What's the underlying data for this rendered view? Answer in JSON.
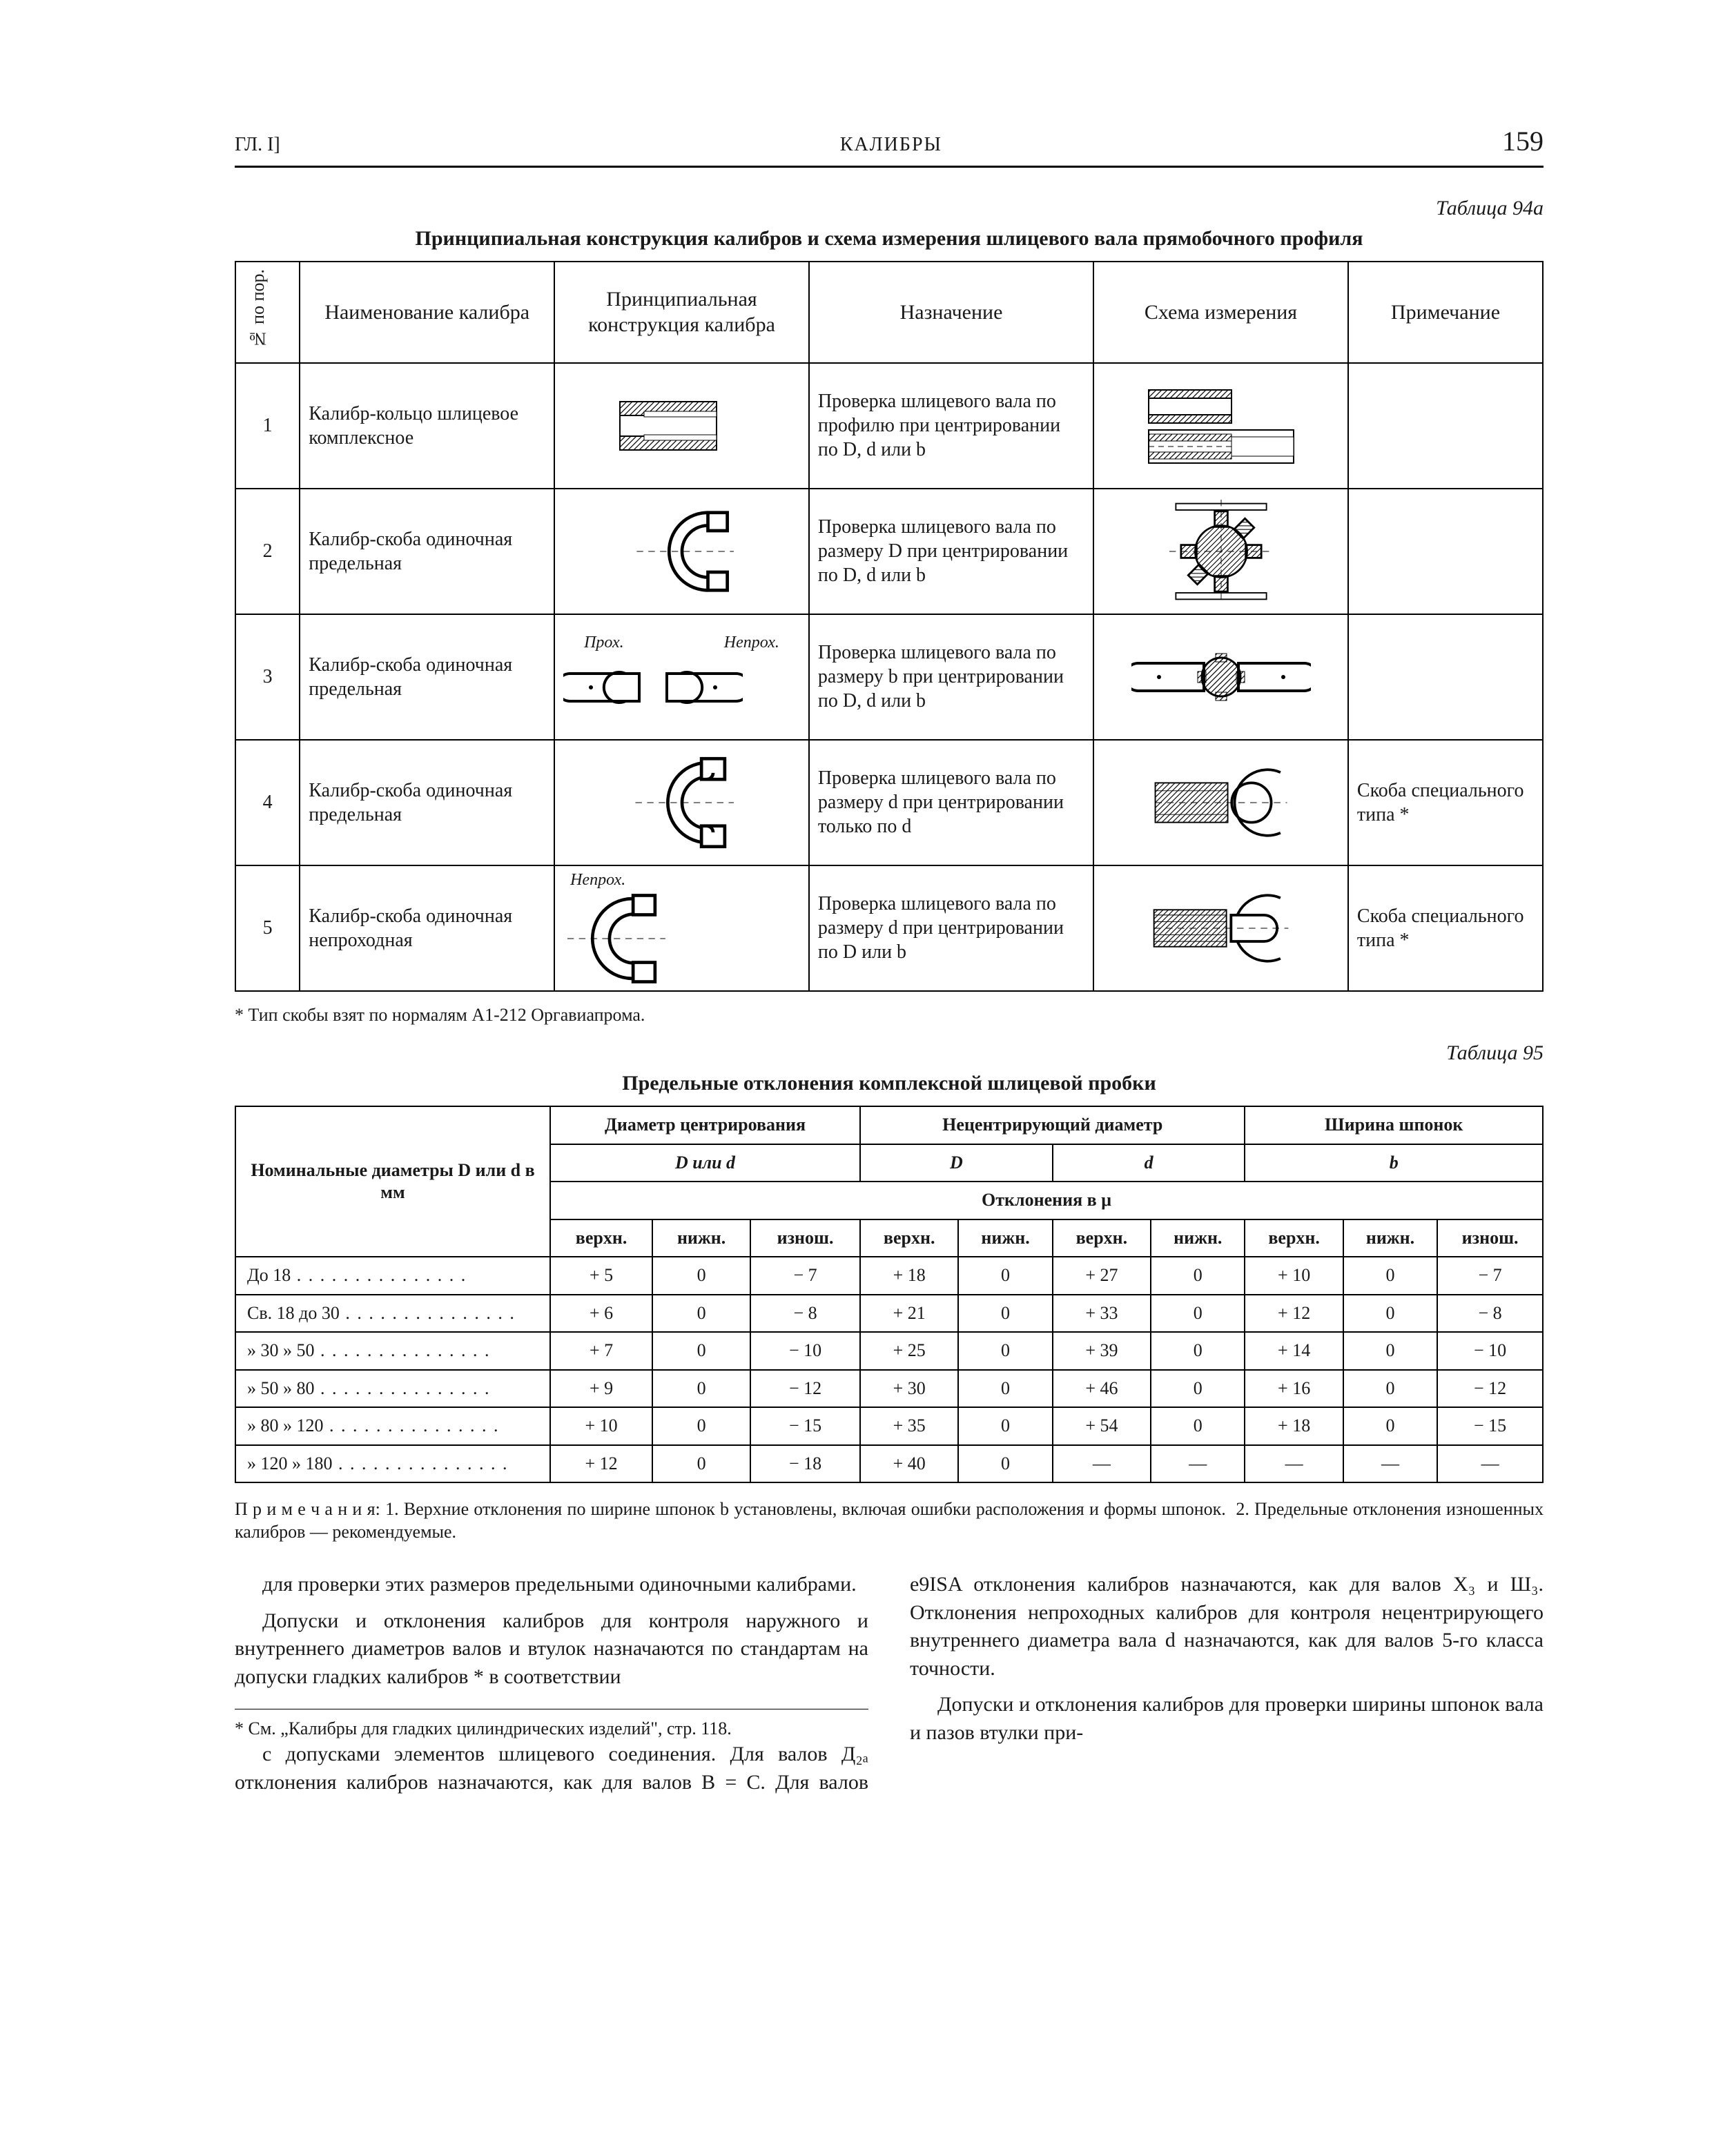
{
  "header": {
    "left": "ГЛ. I]",
    "center": "КАЛИБРЫ",
    "page_no": "159"
  },
  "table94a": {
    "label": "Таблица 94а",
    "title": "Принципиальная конструкция калибров и схема измерения шлицевого вала прямобочного профиля",
    "head": {
      "num": "№ по пор.",
      "name": "Наименование калибра",
      "cons": "Принципиальная конструкция калибра",
      "purp": "Назначение",
      "sch": "Схема измерения",
      "note": "Примечание"
    },
    "diag_labels": {
      "proh": "Прох.",
      "neproh": "Непрох."
    },
    "rows": [
      {
        "n": "1",
        "name": "Калибр-кольцо шлицевое комплексное",
        "purpose": "Проверка шлицевого вала по профилю при центрировании по D, d или b",
        "note": ""
      },
      {
        "n": "2",
        "name": "Калибр-скоба одиночная предельная",
        "purpose": "Проверка шлицевого вала по размеру D при центрировании по D, d или b",
        "note": ""
      },
      {
        "n": "3",
        "name": "Калибр-скоба одиночная предельная",
        "purpose": "Проверка шлицевого вала по размеру b при центрировании по D, d или b",
        "note": ""
      },
      {
        "n": "4",
        "name": "Калибр-скоба одиночная предельная",
        "purpose": "Проверка шлицевого вала по размеру d при центрировании только по d",
        "note": "Скоба специального типа *"
      },
      {
        "n": "5",
        "name": "Калибр-скоба одиночная непроходная",
        "purpose": "Проверка шлицевого вала по размеру d при центрировании по D или b",
        "note": "Скоба специального типа *"
      }
    ],
    "footnote": "* Тип скобы взят по нормалям А1-212 Оргавиапрома."
  },
  "table95": {
    "label": "Таблица 95",
    "title": "Предельные отклонения комплексной шлицевой пробки",
    "head": {
      "nom": "Номинальные диаметры D или d в мм",
      "center_diam": "Диаметр центрирования",
      "noncenter_diam": "Нецентрирующий диаметр",
      "key_width": "Ширина шпонок",
      "D_or_d": "D или d",
      "D": "D",
      "d": "d",
      "b": "b",
      "dev": "Отклонения в μ",
      "upper": "верхн.",
      "lower": "нижн.",
      "worn": "изнош."
    },
    "rows": [
      {
        "label": "До 18",
        "c_u": "+ 5",
        "c_l": "0",
        "c_w": "− 7",
        "D_u": "+ 18",
        "D_l": "0",
        "d_u": "+ 27",
        "d_l": "0",
        "b_u": "+ 10",
        "b_l": "0",
        "b_w": "− 7"
      },
      {
        "label": "Св. 18 до 30",
        "c_u": "+ 6",
        "c_l": "0",
        "c_w": "− 8",
        "D_u": "+ 21",
        "D_l": "0",
        "d_u": "+ 33",
        "d_l": "0",
        "b_u": "+ 12",
        "b_l": "0",
        "b_w": "− 8"
      },
      {
        "label": "» 30 » 50",
        "c_u": "+ 7",
        "c_l": "0",
        "c_w": "− 10",
        "D_u": "+ 25",
        "D_l": "0",
        "d_u": "+ 39",
        "d_l": "0",
        "b_u": "+ 14",
        "b_l": "0",
        "b_w": "− 10"
      },
      {
        "label": "» 50 » 80",
        "c_u": "+ 9",
        "c_l": "0",
        "c_w": "− 12",
        "D_u": "+ 30",
        "D_l": "0",
        "d_u": "+ 46",
        "d_l": "0",
        "b_u": "+ 16",
        "b_l": "0",
        "b_w": "− 12"
      },
      {
        "label": "» 80 » 120",
        "c_u": "+ 10",
        "c_l": "0",
        "c_w": "− 15",
        "D_u": "+ 35",
        "D_l": "0",
        "d_u": "+ 54",
        "d_l": "0",
        "b_u": "+ 18",
        "b_l": "0",
        "b_w": "− 15"
      },
      {
        "label": "» 120 » 180",
        "c_u": "+ 12",
        "c_l": "0",
        "c_w": "− 18",
        "D_u": "+ 40",
        "D_l": "0",
        "d_u": "—",
        "d_l": "—",
        "b_u": "—",
        "b_l": "—",
        "b_w": "—"
      }
    ],
    "notes": "П р и м е ч а н и я: 1. Верхние отклонения по ширине шпонок b установлены, включая ошибки расположения и формы шпонок.  2. Предельные отклонения изношенных калибров — рекомендуемые."
  },
  "body": {
    "p1": "для проверки этих размеров предельными одиночными калибрами.",
    "p2": "Допуски и отклонения калибров для контроля наружного и внутреннего диаметров валов и втулок назначаются по стандартам на допуски гладких калибров * в соответствии",
    "fn": "* См. „Калибры для гладких цилиндрических изделий\", стр. 118.",
    "p3": "с допусками элементов шлицевого соединения. Для валов Д₂ₐ отклонения калибров назначаются, как для валов В = С. Для валов e9ISA отклонения калибров назначаются, как для валов Х₃ и Ш₃. Отклонения непроходных калибров для контроля нецентрирующего внутреннего диаметра вала d назначаются, как для валов 5-го класса точности.",
    "p4": "Допуски и отклонения калибров для проверки ширины шпонок вала и пазов втулки при-"
  }
}
